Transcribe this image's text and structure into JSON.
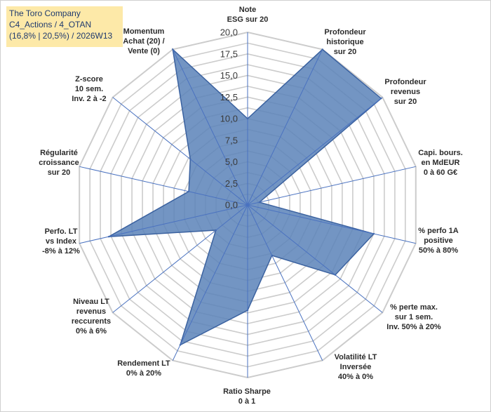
{
  "title_box": {
    "line1": "The Toro Company",
    "line2": "C4_Actions / 4_OTAN",
    "line3": "(16,8% | 20,5%) / 2026W13"
  },
  "chart_data": {
    "type": "radar",
    "title": "The Toro Company",
    "rmin": 0,
    "rmax": 20,
    "ticks": [
      "0,0",
      "2,5",
      "5,0",
      "7,5",
      "10,0",
      "12,5",
      "15,0",
      "17,5",
      "20,0"
    ],
    "grid_levels": 16,
    "colors": {
      "fill": "#5b82b8",
      "stroke": "#3b62a0",
      "grid": "#cccccc",
      "spoke": "#4a72c0"
    },
    "axes": [
      {
        "label": [
          "Note",
          "ESG sur 20"
        ],
        "value": 10.0
      },
      {
        "label": [
          "Profondeur",
          "historique",
          "sur 20"
        ],
        "value": 20.0
      },
      {
        "label": [
          "Profondeur",
          "revenus",
          "sur 20"
        ],
        "value": 19.8
      },
      {
        "label": [
          "Capi. bours.",
          "en MdEUR",
          "0 à 60 G€"
        ],
        "value": 1.4
      },
      {
        "label": [
          "% perfo 1A",
          "positive",
          "50% à 80%"
        ],
        "value": 15.0
      },
      {
        "label": [
          "% perte max.",
          "sur 1 sem.",
          "Inv. 50% à 20%"
        ],
        "value": 13.0
      },
      {
        "label": [
          "Volatilité LT",
          "Inversée",
          "40% à 0%"
        ],
        "value": 6.5
      },
      {
        "label": [
          "Ratio Sharpe",
          "0 à 1"
        ],
        "value": 12.2
      },
      {
        "label": [
          "Rendement LT",
          "0% à 20%"
        ],
        "value": 18.0
      },
      {
        "label": [
          "Niveau LT",
          "revenus",
          "reccurents",
          "0% à 6%"
        ],
        "value": 4.7
      },
      {
        "label": [
          "Perfo. LT",
          "vs Index",
          "-8% à 12%"
        ],
        "value": 16.5
      },
      {
        "label": [
          "Régularité",
          "croissance",
          "sur 20"
        ],
        "value": 7.0
      },
      {
        "label": [
          "Z-score",
          "10 sem.",
          "Inv. 2 à -2"
        ],
        "value": 8.5
      },
      {
        "label": [
          "Momentum",
          "Achat (20) /",
          "Vente (0)"
        ],
        "value": 20.0
      }
    ]
  }
}
